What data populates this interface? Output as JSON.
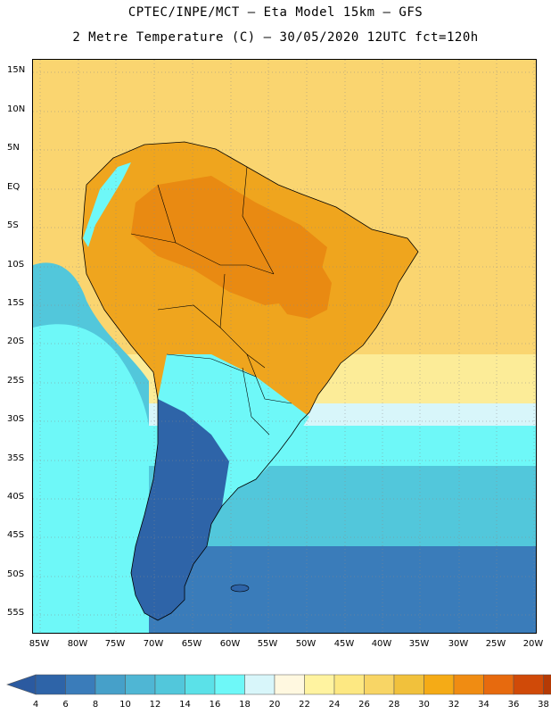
{
  "header": {
    "title_line1": "CPTEC/INPE/MCT –  Eta Model 15km – GFS",
    "title_line2": "2 Metre Temperature (C) – 30/05/2020 12UTC fct=120h"
  },
  "map": {
    "lat_labels": [
      "15N",
      "10N",
      "5N",
      "EQ",
      "5S",
      "10S",
      "15S",
      "20S",
      "25S",
      "30S",
      "35S",
      "40S",
      "45S",
      "50S",
      "55S"
    ],
    "lon_labels": [
      "85W",
      "80W",
      "75W",
      "70W",
      "65W",
      "60W",
      "55W",
      "50W",
      "45W",
      "40W",
      "35W",
      "30W",
      "25W",
      "20W"
    ]
  },
  "colorbar": {
    "labels": [
      "4",
      "6",
      "8",
      "10",
      "12",
      "14",
      "16",
      "18",
      "20",
      "22",
      "24",
      "26",
      "28",
      "30",
      "32",
      "34",
      "36",
      "38"
    ],
    "colors": [
      "#2e64a8",
      "#3a7cba",
      "#46a0c9",
      "#4fb6d4",
      "#52c7db",
      "#5be1e8",
      "#6ef8f8",
      "#d8f6fa",
      "#fff8e0",
      "#fff3a0",
      "#fde882",
      "#f8d565",
      "#f1c13c",
      "#f5ab16",
      "#f08c12",
      "#e76a0e",
      "#d04a08",
      "#b53a05"
    ],
    "below_color": "#2b5aa0",
    "above_color": "#a0320a"
  },
  "palette": {
    "ocean_tropical": "#fad570",
    "land_warm": "#efa51e",
    "land_hot": "#e98a12",
    "subtropic": "#fcec98",
    "cool_band": "#d8f6fa",
    "cyan": "#6ef8f8",
    "ocean_mid": "#52c7db",
    "ocean_south": "#3a7cba",
    "andes_cold": "#2e64a8"
  }
}
